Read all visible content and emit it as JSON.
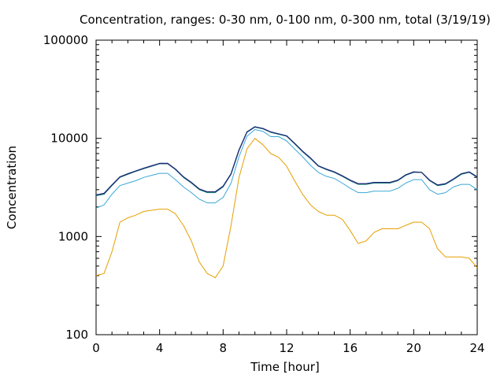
{
  "chart_data": {
    "type": "line",
    "title": "Concentration, ranges: 0-30 nm, 0-100 nm, 0-300 nm, total (3/19/19)",
    "xlabel": "Time [hour]",
    "ylabel": "Concentration",
    "xlim": [
      0,
      24
    ],
    "ylim": [
      100,
      100000
    ],
    "yscale": "log",
    "grid": false,
    "x_ticks": [
      0,
      4,
      8,
      12,
      16,
      20,
      24
    ],
    "x_tick_labels": [
      "0",
      "4",
      "8",
      "12",
      "16",
      "20",
      "24"
    ],
    "y_ticks": [
      100,
      1000,
      10000,
      100000
    ],
    "y_tick_labels": [
      "100",
      "1000",
      "10000",
      "100000"
    ],
    "colors": [
      "#e59f01",
      "#3aa8d8",
      "#0f8a73",
      "#1e2f78"
    ],
    "x": [
      0,
      0.5,
      1,
      1.5,
      2,
      2.5,
      3,
      3.5,
      4,
      4.5,
      5,
      5.5,
      6,
      6.5,
      7,
      7.5,
      8,
      8.5,
      9,
      9.5,
      10,
      10.5,
      11,
      11.5,
      12,
      12.5,
      13,
      13.5,
      14,
      14.5,
      15,
      15.5,
      16,
      16.5,
      17,
      17.5,
      18,
      18.5,
      19,
      19.5,
      20,
      20.5,
      21,
      21.5,
      22,
      22.5,
      23,
      23.5,
      24
    ],
    "series": [
      {
        "values": [
          400,
          420,
          700,
          1400,
          1550,
          1650,
          1800,
          1850,
          1900,
          1900,
          1700,
          1300,
          900,
          550,
          420,
          380,
          500,
          1300,
          4000,
          7800,
          10000,
          8600,
          7000,
          6400,
          5200,
          3700,
          2700,
          2100,
          1800,
          1650,
          1650,
          1500,
          1150,
          850,
          900,
          1100,
          1200,
          1200,
          1200,
          1300,
          1400,
          1400,
          1200,
          750,
          620,
          620,
          620,
          600,
          480
        ]
      },
      {
        "values": [
          1950,
          2100,
          2700,
          3300,
          3500,
          3700,
          4000,
          4200,
          4400,
          4400,
          3800,
          3200,
          2800,
          2400,
          2200,
          2200,
          2500,
          3500,
          6500,
          10500,
          12300,
          11800,
          10400,
          10400,
          9400,
          7800,
          6500,
          5300,
          4500,
          4100,
          3900,
          3500,
          3100,
          2800,
          2800,
          2900,
          2900,
          2900,
          3100,
          3500,
          3800,
          3800,
          3000,
          2700,
          2800,
          3200,
          3400,
          3400,
          3000
        ]
      },
      {
        "values": [
          2600,
          2700,
          3300,
          4000,
          4300,
          4600,
          4900,
          5200,
          5500,
          5500,
          4800,
          4000,
          3500,
          3000,
          2800,
          2800,
          3200,
          4300,
          7500,
          11500,
          13000,
          12500,
          11500,
          11000,
          10500,
          8800,
          7300,
          6200,
          5200,
          4800,
          4500,
          4100,
          3700,
          3400,
          3400,
          3500,
          3500,
          3500,
          3700,
          4200,
          4500,
          4500,
          3700,
          3300,
          3400,
          3800,
          4300,
          4500,
          4000
        ]
      },
      {
        "values": [
          2650,
          2750,
          3350,
          4050,
          4350,
          4650,
          4950,
          5250,
          5550,
          5550,
          4850,
          4050,
          3550,
          3050,
          2850,
          2850,
          3250,
          4350,
          7600,
          11600,
          13100,
          12600,
          11600,
          11100,
          10600,
          8900,
          7400,
          6300,
          5250,
          4850,
          4550,
          4150,
          3750,
          3450,
          3450,
          3550,
          3550,
          3550,
          3750,
          4250,
          4550,
          4500,
          3750,
          3350,
          3450,
          3850,
          4350,
          4550,
          4050
        ]
      }
    ]
  }
}
